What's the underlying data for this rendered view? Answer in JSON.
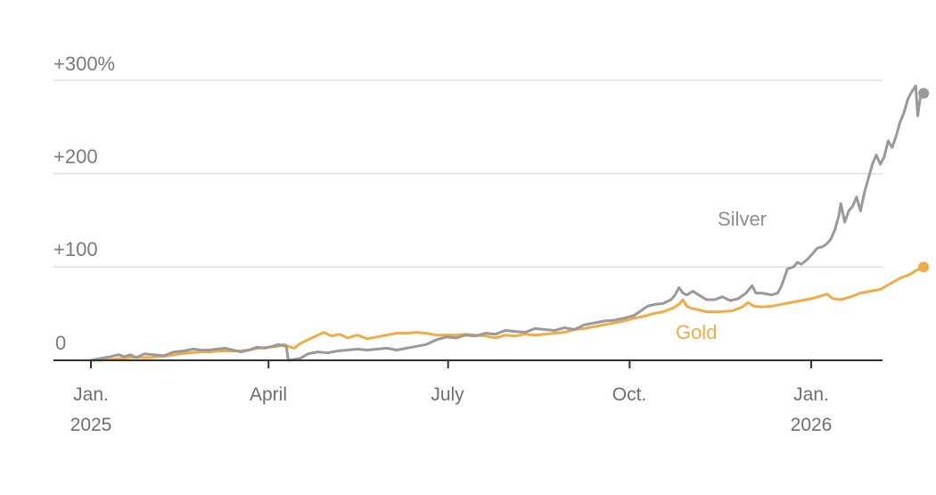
{
  "chart_data": {
    "type": "line",
    "title": "",
    "xlabel": "",
    "ylabel": "",
    "ylim": [
      0,
      300
    ],
    "y_ticks": [
      {
        "value": 0,
        "label": "0"
      },
      {
        "value": 100,
        "label": "+100"
      },
      {
        "value": 200,
        "label": "+200"
      },
      {
        "value": 300,
        "label": "+300%"
      }
    ],
    "x_ticks": [
      {
        "day": 0,
        "label_line1": "Jan.",
        "label_line2": "2025"
      },
      {
        "day": 90,
        "label_line1": "April",
        "label_line2": ""
      },
      {
        "day": 181,
        "label_line1": "July",
        "label_line2": ""
      },
      {
        "day": 273,
        "label_line1": "Oct.",
        "label_line2": ""
      },
      {
        "day": 365,
        "label_line1": "Jan.",
        "label_line2": "2026"
      }
    ],
    "grid": true,
    "legend": "inline labels",
    "x_unit": "days since Jan. 1, 2025",
    "series": [
      {
        "name": "Silver",
        "label": "Silver",
        "color": "#999999",
        "points": [
          [
            0,
            0
          ],
          [
            5,
            2
          ],
          [
            10,
            4
          ],
          [
            14,
            6
          ],
          [
            17,
            4
          ],
          [
            20,
            6
          ],
          [
            23,
            3
          ],
          [
            27,
            7
          ],
          [
            32,
            6
          ],
          [
            37,
            5
          ],
          [
            42,
            9
          ],
          [
            47,
            10
          ],
          [
            52,
            12
          ],
          [
            56,
            11
          ],
          [
            60,
            11
          ],
          [
            64,
            12
          ],
          [
            68,
            13
          ],
          [
            72,
            11
          ],
          [
            76,
            9
          ],
          [
            80,
            11
          ],
          [
            84,
            14
          ],
          [
            88,
            13
          ],
          [
            92,
            15
          ],
          [
            95,
            17
          ],
          [
            97,
            16
          ],
          [
            99,
            15
          ],
          [
            100,
            0
          ],
          [
            103,
            1
          ],
          [
            106,
            2
          ],
          [
            110,
            7
          ],
          [
            115,
            9
          ],
          [
            120,
            8
          ],
          [
            125,
            10
          ],
          [
            130,
            11
          ],
          [
            135,
            12
          ],
          [
            140,
            11
          ],
          [
            145,
            12
          ],
          [
            150,
            13
          ],
          [
            155,
            11
          ],
          [
            160,
            13
          ],
          [
            165,
            15
          ],
          [
            170,
            17
          ],
          [
            175,
            22
          ],
          [
            180,
            25
          ],
          [
            185,
            24
          ],
          [
            190,
            27
          ],
          [
            195,
            26
          ],
          [
            200,
            29
          ],
          [
            205,
            28
          ],
          [
            210,
            32
          ],
          [
            215,
            31
          ],
          [
            220,
            30
          ],
          [
            225,
            34
          ],
          [
            230,
            33
          ],
          [
            235,
            32
          ],
          [
            240,
            35
          ],
          [
            242,
            34
          ],
          [
            245,
            33
          ],
          [
            250,
            38
          ],
          [
            255,
            40
          ],
          [
            260,
            42
          ],
          [
            265,
            43
          ],
          [
            270,
            45
          ],
          [
            275,
            48
          ],
          [
            278,
            52
          ],
          [
            282,
            58
          ],
          [
            286,
            60
          ],
          [
            290,
            61
          ],
          [
            294,
            65
          ],
          [
            296,
            70
          ],
          [
            298,
            78
          ],
          [
            300,
            72
          ],
          [
            302,
            70
          ],
          [
            305,
            74
          ],
          [
            308,
            70
          ],
          [
            312,
            65
          ],
          [
            316,
            65
          ],
          [
            320,
            68
          ],
          [
            324,
            64
          ],
          [
            328,
            66
          ],
          [
            332,
            72
          ],
          [
            335,
            80
          ],
          [
            337,
            72
          ],
          [
            340,
            72
          ],
          [
            345,
            70
          ],
          [
            348,
            72
          ],
          [
            350,
            80
          ],
          [
            353,
            98
          ],
          [
            356,
            100
          ],
          [
            358,
            105
          ],
          [
            360,
            103
          ],
          [
            363,
            108
          ],
          [
            366,
            115
          ],
          [
            368,
            120
          ],
          [
            371,
            122
          ],
          [
            373,
            125
          ],
          [
            375,
            130
          ],
          [
            377,
            140
          ],
          [
            379,
            155
          ],
          [
            380,
            168
          ],
          [
            382,
            148
          ],
          [
            384,
            160
          ],
          [
            386,
            165
          ],
          [
            388,
            175
          ],
          [
            390,
            160
          ],
          [
            392,
            180
          ],
          [
            394,
            195
          ],
          [
            396,
            210
          ],
          [
            398,
            220
          ],
          [
            400,
            210
          ],
          [
            402,
            218
          ],
          [
            404,
            235
          ],
          [
            406,
            228
          ],
          [
            408,
            240
          ],
          [
            410,
            255
          ],
          [
            412,
            265
          ],
          [
            414,
            280
          ],
          [
            416,
            288
          ],
          [
            418,
            294
          ],
          [
            419,
            262
          ],
          [
            420,
            278
          ],
          [
            421,
            290
          ],
          [
            422,
            286
          ]
        ]
      },
      {
        "name": "Gold",
        "label": "Gold",
        "color": "#f0ab45",
        "points": [
          [
            0,
            0
          ],
          [
            5,
            0
          ],
          [
            10,
            1
          ],
          [
            15,
            2
          ],
          [
            20,
            3
          ],
          [
            25,
            3
          ],
          [
            30,
            3
          ],
          [
            35,
            4
          ],
          [
            40,
            5
          ],
          [
            45,
            7
          ],
          [
            50,
            8
          ],
          [
            55,
            9
          ],
          [
            60,
            9
          ],
          [
            65,
            10
          ],
          [
            70,
            10
          ],
          [
            75,
            10
          ],
          [
            80,
            11
          ],
          [
            85,
            13
          ],
          [
            90,
            14
          ],
          [
            95,
            15
          ],
          [
            98,
            17
          ],
          [
            100,
            15
          ],
          [
            103,
            13
          ],
          [
            106,
            18
          ],
          [
            110,
            22
          ],
          [
            115,
            27
          ],
          [
            118,
            30
          ],
          [
            122,
            26
          ],
          [
            126,
            28
          ],
          [
            130,
            24
          ],
          [
            135,
            27
          ],
          [
            140,
            23
          ],
          [
            145,
            25
          ],
          [
            150,
            27
          ],
          [
            155,
            29
          ],
          [
            160,
            29
          ],
          [
            165,
            30
          ],
          [
            170,
            29
          ],
          [
            175,
            27
          ],
          [
            180,
            27
          ],
          [
            185,
            27
          ],
          [
            190,
            28
          ],
          [
            195,
            27
          ],
          [
            200,
            26
          ],
          [
            205,
            24
          ],
          [
            210,
            27
          ],
          [
            215,
            26
          ],
          [
            220,
            28
          ],
          [
            225,
            27
          ],
          [
            230,
            28
          ],
          [
            235,
            29
          ],
          [
            240,
            30
          ],
          [
            245,
            33
          ],
          [
            250,
            34
          ],
          [
            255,
            36
          ],
          [
            260,
            38
          ],
          [
            265,
            40
          ],
          [
            270,
            42
          ],
          [
            275,
            45
          ],
          [
            280,
            47
          ],
          [
            285,
            50
          ],
          [
            290,
            52
          ],
          [
            295,
            56
          ],
          [
            298,
            60
          ],
          [
            300,
            65
          ],
          [
            302,
            58
          ],
          [
            304,
            56
          ],
          [
            308,
            54
          ],
          [
            312,
            52
          ],
          [
            318,
            52
          ],
          [
            325,
            53
          ],
          [
            330,
            57
          ],
          [
            333,
            62
          ],
          [
            336,
            58
          ],
          [
            340,
            57
          ],
          [
            345,
            58
          ],
          [
            350,
            60
          ],
          [
            355,
            62
          ],
          [
            360,
            64
          ],
          [
            365,
            66
          ],
          [
            370,
            69
          ],
          [
            373,
            71
          ],
          [
            376,
            66
          ],
          [
            380,
            65
          ],
          [
            385,
            68
          ],
          [
            390,
            72
          ],
          [
            395,
            74
          ],
          [
            400,
            76
          ],
          [
            405,
            82
          ],
          [
            410,
            88
          ],
          [
            415,
            92
          ],
          [
            418,
            96
          ],
          [
            422,
            100
          ]
        ]
      }
    ]
  },
  "labels": {
    "silver": "Silver",
    "gold": "Gold"
  }
}
